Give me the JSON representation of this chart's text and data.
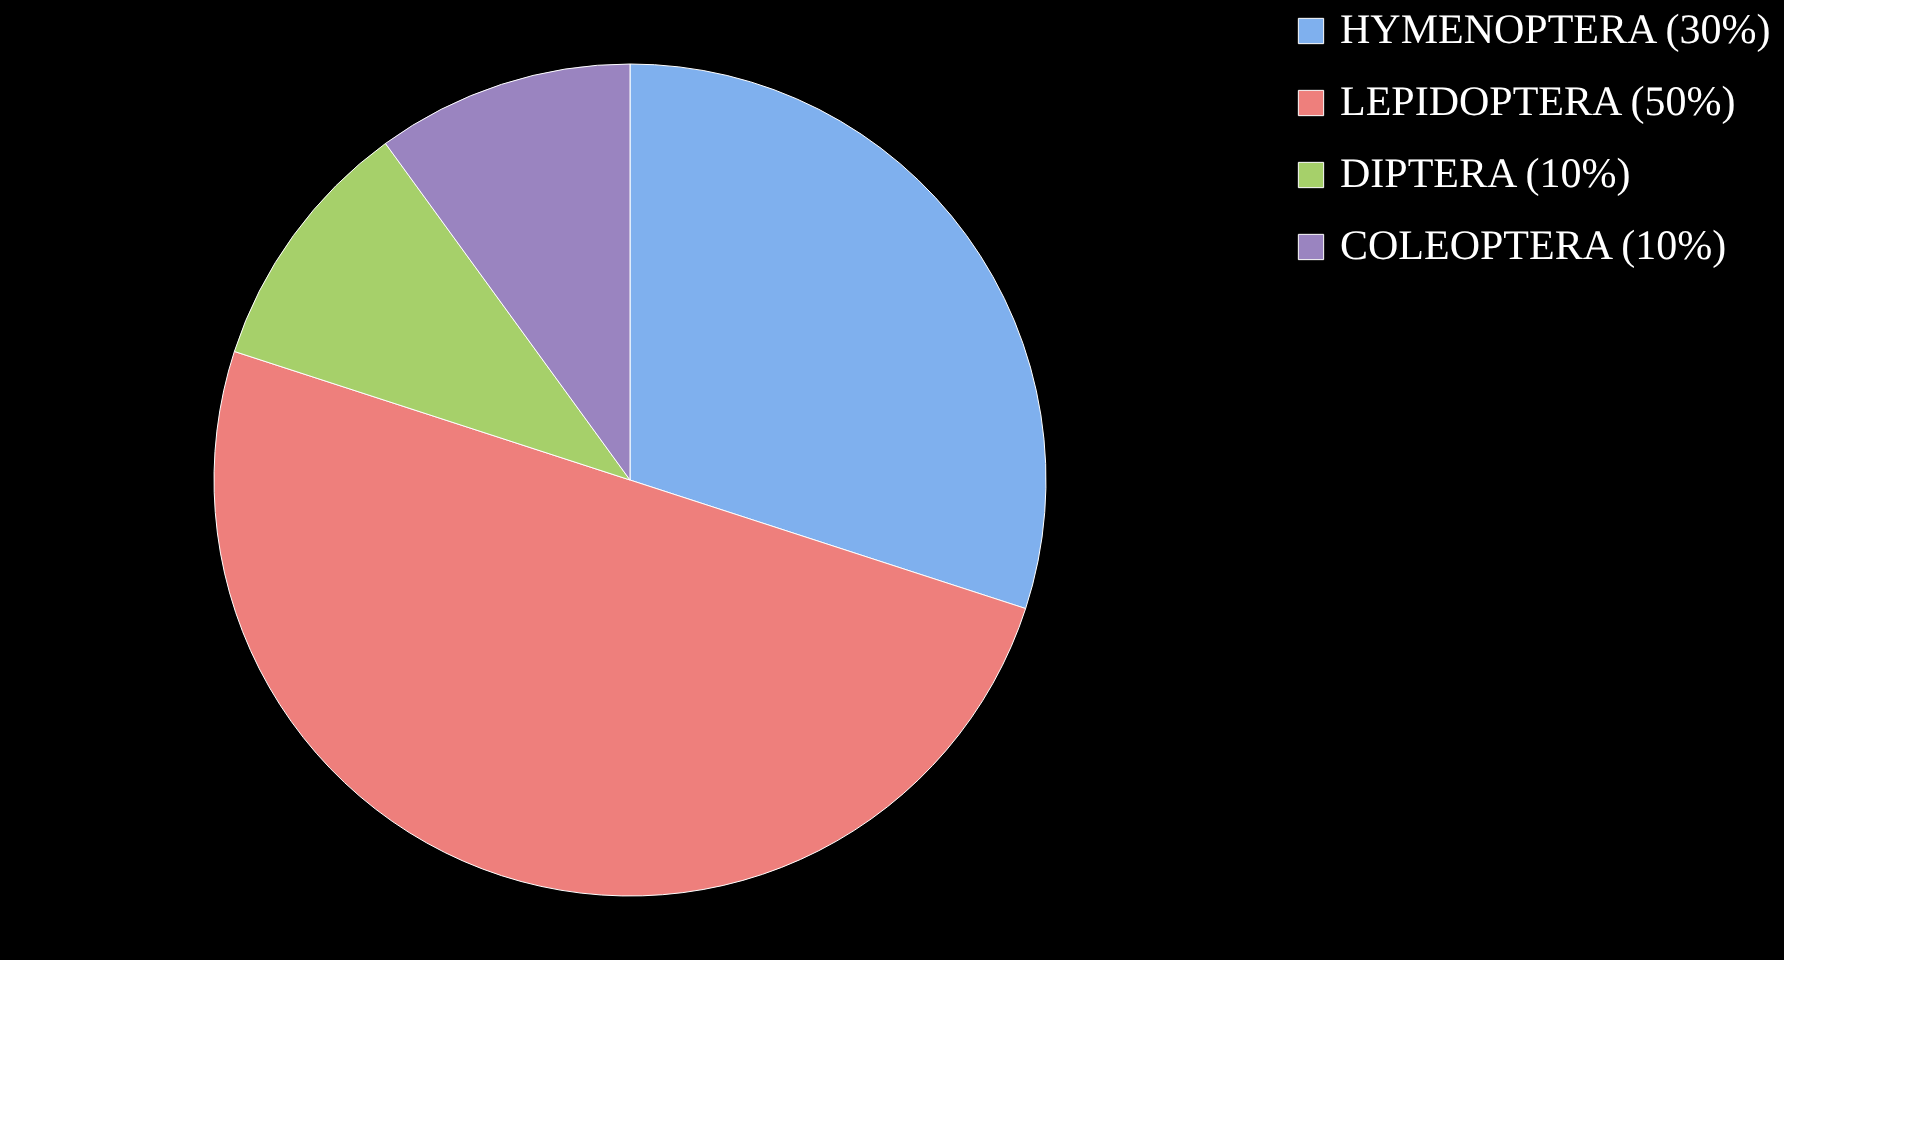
{
  "chart_data": {
    "type": "pie",
    "categories": [
      "HYMENOPTERA (30%)",
      "LEPIDOPTERA (50%)",
      "DIPTERA (10%)",
      "COLEOPTERA (10%)"
    ],
    "values": [
      30,
      50,
      10,
      10
    ],
    "colors": [
      "#7fb0ee",
      "#ee7f7c",
      "#a6d06a",
      "#9a84c0"
    ],
    "legend": "right"
  }
}
